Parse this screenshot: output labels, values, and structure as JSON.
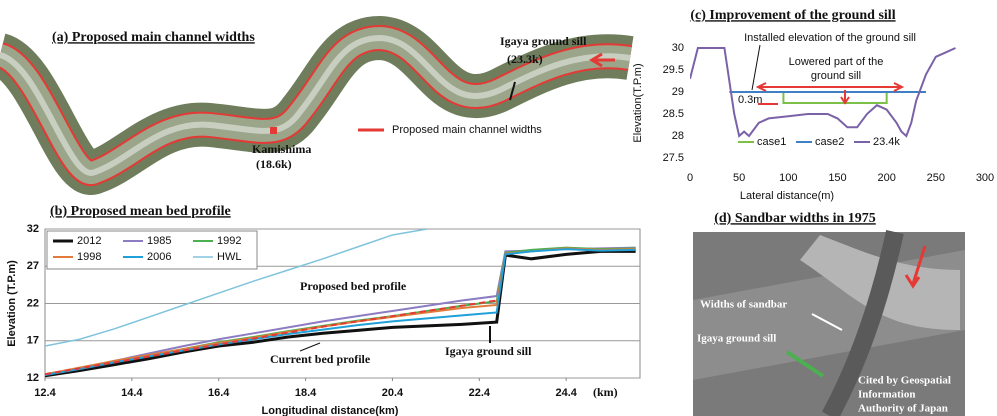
{
  "panels": {
    "a": {
      "title": "(a) Proposed main channel widths",
      "sill_label": "Igaya ground sill",
      "sill_km": "(23.3k)",
      "town_label": "Kamishima",
      "town_km": "(18.6k)",
      "legend": "Proposed main channel widths"
    },
    "d": {
      "title": "(d) Sandbar widths in 1975",
      "sandbar_label": "Widths of sandbar",
      "sill_label": "Igaya ground sill",
      "credit": [
        "Cited by Geospatial",
        "Information",
        "Authority of Japan"
      ]
    }
  },
  "chart_data": [
    {
      "type": "line",
      "title": "(b) Proposed mean bed profile",
      "x_label": "Longitudinal distance(km)",
      "y_label": "Elevation (T.P.m)",
      "x_unit": "(km)",
      "x": [
        12.4,
        13.2,
        14.0,
        14.8,
        15.6,
        16.4,
        17.2,
        18.0,
        18.8,
        19.6,
        20.4,
        21.2,
        22.0,
        22.8,
        23.0,
        23.6,
        24.4,
        25.2,
        26.0
      ],
      "series": [
        {
          "name": "2012",
          "color": "#111111",
          "width": 3,
          "values": [
            12.3,
            13.0,
            13.8,
            14.6,
            15.5,
            16.3,
            16.8,
            17.5,
            18.0,
            18.4,
            18.8,
            19.0,
            19.2,
            19.5,
            28.5,
            28.0,
            28.6,
            29.0,
            29.0
          ]
        },
        {
          "name": "1985",
          "color": "#8e7cc3",
          "width": 2,
          "values": [
            12.4,
            13.3,
            14.3,
            15.3,
            16.3,
            17.2,
            18.0,
            18.8,
            19.6,
            20.3,
            21.0,
            21.7,
            22.4,
            23.0,
            29.0,
            29.1,
            29.3,
            29.4,
            29.5
          ]
        },
        {
          "name": "1992",
          "color": "#4caf50",
          "width": 2,
          "values": [
            12.5,
            13.3,
            14.2,
            15.0,
            15.9,
            16.8,
            17.5,
            18.3,
            19.0,
            19.7,
            20.3,
            21.0,
            21.7,
            22.3,
            28.8,
            29.2,
            29.5,
            29.3,
            29.4
          ]
        },
        {
          "name": "1998",
          "color": "#e07b39",
          "width": 2,
          "values": [
            12.5,
            13.4,
            14.3,
            15.1,
            15.9,
            16.7,
            17.4,
            18.2,
            18.9,
            19.6,
            20.2,
            20.8,
            21.4,
            21.8,
            28.7,
            29.0,
            29.4,
            29.2,
            29.3
          ]
        },
        {
          "name": "2006",
          "color": "#1fa0d8",
          "width": 2,
          "values": [
            12.4,
            13.2,
            14.1,
            14.9,
            15.7,
            16.5,
            17.2,
            17.9,
            18.5,
            19.1,
            19.6,
            20.0,
            20.4,
            20.8,
            28.6,
            29.0,
            29.3,
            29.1,
            29.2
          ]
        },
        {
          "name": "HWL",
          "color": "#7fc4dc",
          "width": 1.5,
          "values": [
            16.3,
            17.2,
            18.6,
            20.2,
            21.8,
            23.4,
            25.0,
            26.5,
            28.0,
            29.6,
            31.2,
            32.0,
            null,
            null,
            null,
            null,
            null,
            null,
            null
          ]
        }
      ],
      "proposed": {
        "label": "Proposed bed profile",
        "color": "#e53935",
        "dashed": true,
        "values": [
          12.5,
          13.3,
          14.1,
          14.9,
          15.7,
          16.5,
          17.3,
          18.1,
          18.9,
          19.6,
          20.3,
          21.0,
          21.7,
          22.4,
          null,
          null,
          null,
          null,
          null
        ]
      },
      "annotations": [
        "Current bed profile",
        "Igaya ground sill"
      ],
      "xlim": [
        12.4,
        26.1
      ],
      "ylim": [
        12,
        32
      ],
      "xticks": [
        12.4,
        14.4,
        16.4,
        18.4,
        20.4,
        22.4,
        24.4
      ],
      "yticks": [
        12,
        17,
        22,
        27,
        32
      ],
      "grid": true,
      "frame": true,
      "legend": "top-left"
    },
    {
      "type": "line",
      "title": "(c) Improvement of the ground sill",
      "x_label": "Lateral distance(m)",
      "y_label": "Elevation(T.P.m)",
      "series": [
        {
          "name": "case1",
          "color": "#7cc04a",
          "width": 2,
          "x": [
            95,
            95,
            200,
            200
          ],
          "values": [
            29.0,
            28.75,
            28.75,
            29.0
          ]
        },
        {
          "name": "case2",
          "color": "#3f7fc4",
          "width": 2,
          "x": [
            40,
            240
          ],
          "values": [
            29.0,
            29.0
          ]
        },
        {
          "name": "23.4k",
          "color": "#7b62a8",
          "width": 2,
          "x": [
            0,
            8,
            35,
            45,
            50,
            55,
            60,
            70,
            80,
            100,
            120,
            140,
            150,
            160,
            170,
            180,
            190,
            200,
            210,
            215,
            220,
            225,
            230,
            240,
            250,
            260,
            270
          ],
          "values": [
            29.3,
            30.0,
            30.0,
            28.5,
            28.0,
            28.1,
            28.0,
            28.3,
            28.4,
            28.45,
            28.5,
            28.5,
            28.4,
            28.2,
            28.2,
            28.5,
            28.7,
            28.6,
            28.3,
            28.1,
            28.0,
            28.3,
            28.8,
            29.4,
            29.8,
            29.9,
            30.0
          ]
        }
      ],
      "annotations": [
        "Installed elevation of the ground sill",
        "Lowered part of the",
        "ground sill",
        "0.3m"
      ],
      "xlim": [
        0,
        300
      ],
      "ylim": [
        27.5,
        30
      ],
      "xticks": [
        0,
        50,
        100,
        150,
        200,
        250,
        300
      ],
      "yticks": [
        27.5,
        28,
        28.5,
        29,
        29.5,
        30
      ],
      "grid": false,
      "frame": false,
      "legend": "bottom"
    }
  ]
}
